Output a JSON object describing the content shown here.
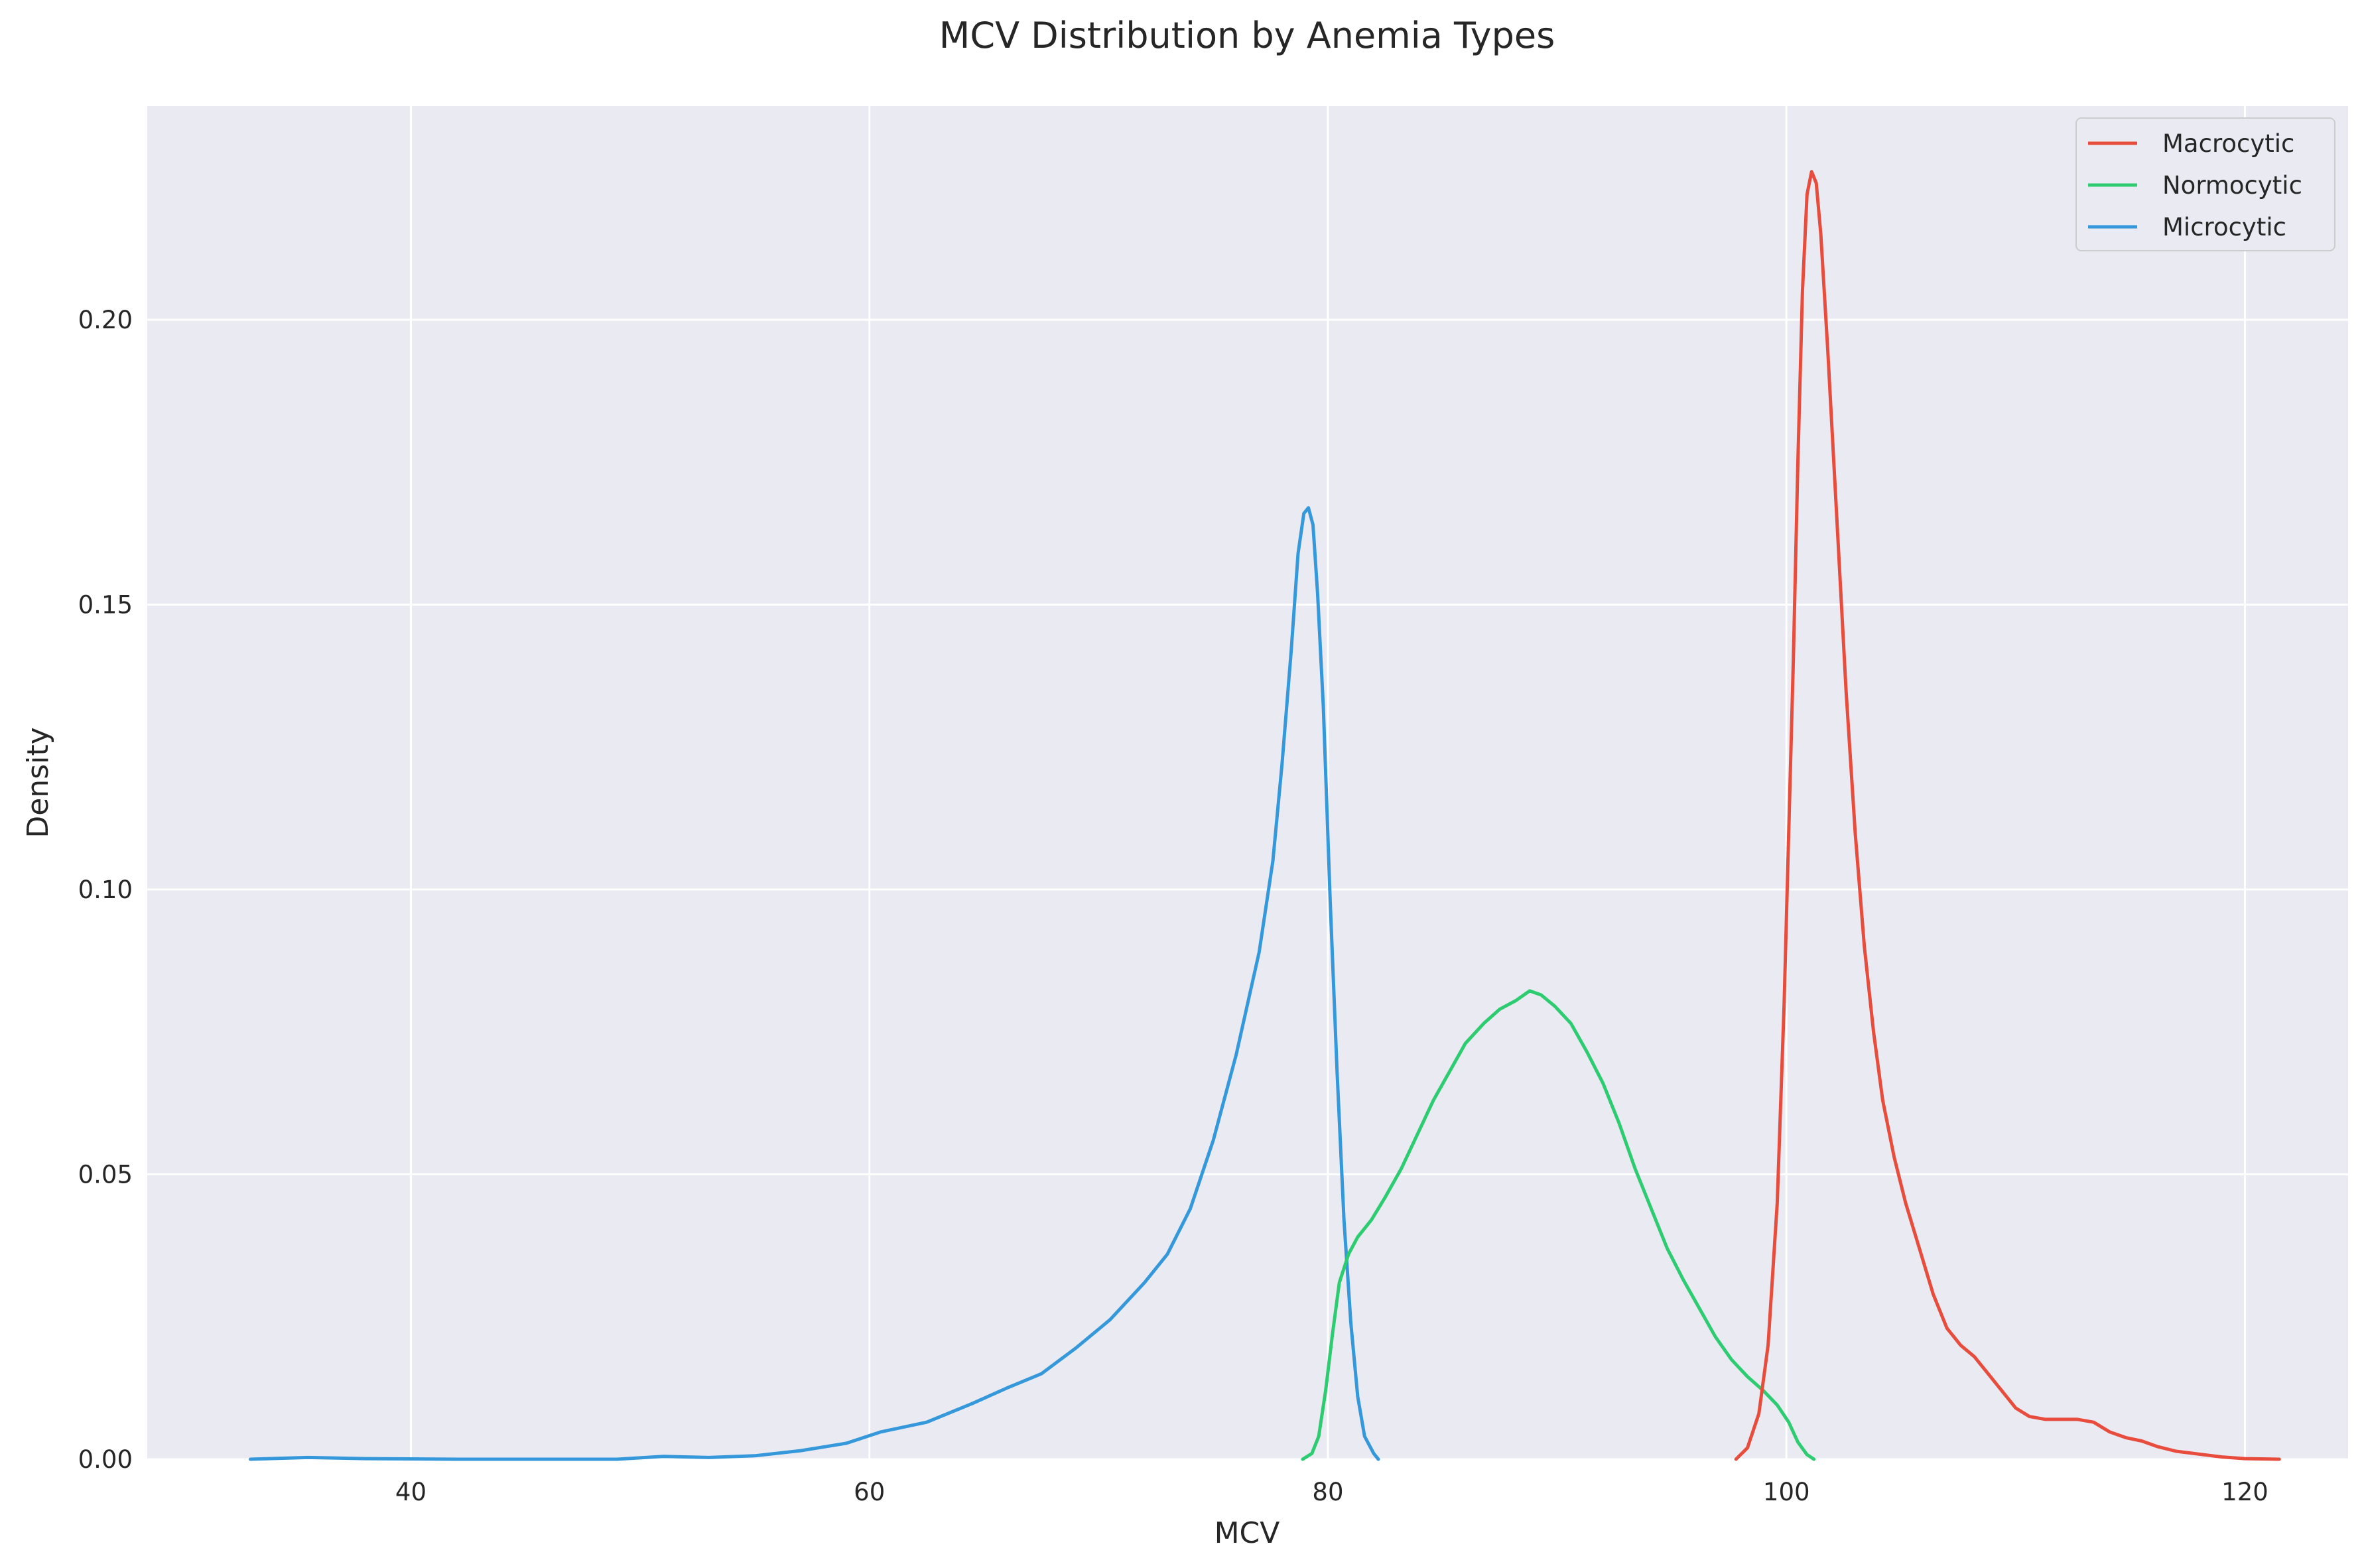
{
  "chart_data": {
    "type": "line",
    "title": "MCV Distribution by Anemia Types",
    "xlabel": "MCV",
    "ylabel": "Density",
    "xlim": [
      28.5,
      124.5
    ],
    "ylim": [
      0,
      0.2375
    ],
    "xticks": [
      40,
      60,
      80,
      100,
      120
    ],
    "yticks": [
      0.0,
      0.05,
      0.1,
      0.15,
      0.2
    ],
    "xtick_labels": [
      "40",
      "60",
      "80",
      "100",
      "120"
    ],
    "ytick_labels": [
      "0.00",
      "0.05",
      "0.10",
      "0.15",
      "0.20"
    ],
    "grid": true,
    "legend_position": "top-right",
    "background": "#eaeaf2",
    "series": [
      {
        "name": "Macrocytic",
        "color": "#e74c3c",
        "points": [
          [
            97.8,
            0.0
          ],
          [
            98.3,
            0.002
          ],
          [
            98.8,
            0.008
          ],
          [
            99.2,
            0.02
          ],
          [
            99.6,
            0.045
          ],
          [
            99.9,
            0.08
          ],
          [
            100.1,
            0.11
          ],
          [
            100.3,
            0.14
          ],
          [
            100.5,
            0.175
          ],
          [
            100.7,
            0.205
          ],
          [
            100.9,
            0.222
          ],
          [
            101.1,
            0.226
          ],
          [
            101.3,
            0.224
          ],
          [
            101.5,
            0.215
          ],
          [
            101.8,
            0.195
          ],
          [
            102.2,
            0.165
          ],
          [
            102.6,
            0.135
          ],
          [
            103.0,
            0.11
          ],
          [
            103.4,
            0.09
          ],
          [
            103.8,
            0.075
          ],
          [
            104.2,
            0.063
          ],
          [
            104.7,
            0.053
          ],
          [
            105.2,
            0.045
          ],
          [
            105.8,
            0.037
          ],
          [
            106.4,
            0.029
          ],
          [
            107.0,
            0.023
          ],
          [
            107.6,
            0.02
          ],
          [
            108.2,
            0.018
          ],
          [
            108.8,
            0.015
          ],
          [
            109.4,
            0.012
          ],
          [
            110.0,
            0.009
          ],
          [
            110.6,
            0.0075
          ],
          [
            111.3,
            0.007
          ],
          [
            112.0,
            0.007
          ],
          [
            112.7,
            0.007
          ],
          [
            113.4,
            0.0065
          ],
          [
            114.1,
            0.0048
          ],
          [
            114.8,
            0.0038
          ],
          [
            115.5,
            0.0032
          ],
          [
            116.2,
            0.0022
          ],
          [
            117.0,
            0.0014
          ],
          [
            118.0,
            0.0009
          ],
          [
            119.0,
            0.0004
          ],
          [
            120.0,
            0.0001
          ],
          [
            121.5,
            0.0
          ]
        ]
      },
      {
        "name": "Normocytic",
        "color": "#2ecc71",
        "points": [
          [
            78.9,
            0.0
          ],
          [
            79.3,
            0.001
          ],
          [
            79.6,
            0.004
          ],
          [
            79.9,
            0.012
          ],
          [
            80.2,
            0.022
          ],
          [
            80.5,
            0.031
          ],
          [
            80.9,
            0.036
          ],
          [
            81.3,
            0.039
          ],
          [
            81.9,
            0.042
          ],
          [
            82.5,
            0.046
          ],
          [
            83.2,
            0.051
          ],
          [
            83.9,
            0.057
          ],
          [
            84.6,
            0.063
          ],
          [
            85.3,
            0.068
          ],
          [
            86.0,
            0.073
          ],
          [
            86.8,
            0.0765
          ],
          [
            87.5,
            0.079
          ],
          [
            88.2,
            0.0805
          ],
          [
            88.8,
            0.0822
          ],
          [
            89.3,
            0.0815
          ],
          [
            89.9,
            0.0795
          ],
          [
            90.6,
            0.0765
          ],
          [
            91.3,
            0.0715
          ],
          [
            92.0,
            0.066
          ],
          [
            92.7,
            0.059
          ],
          [
            93.4,
            0.051
          ],
          [
            94.1,
            0.044
          ],
          [
            94.8,
            0.037
          ],
          [
            95.5,
            0.0315
          ],
          [
            96.2,
            0.0265
          ],
          [
            96.9,
            0.0215
          ],
          [
            97.6,
            0.0175
          ],
          [
            98.3,
            0.0145
          ],
          [
            99.0,
            0.012
          ],
          [
            99.6,
            0.0095
          ],
          [
            100.1,
            0.0065
          ],
          [
            100.5,
            0.003
          ],
          [
            100.9,
            0.0008
          ],
          [
            101.2,
            0.0
          ]
        ]
      },
      {
        "name": "Microcytic",
        "color": "#3498db",
        "points": [
          [
            33.0,
            0.0
          ],
          [
            35.5,
            0.0003
          ],
          [
            38.0,
            0.0001
          ],
          [
            42.0,
            0.0
          ],
          [
            46.0,
            0.0
          ],
          [
            49.0,
            0.0
          ],
          [
            51.0,
            0.0005
          ],
          [
            53.0,
            0.0003
          ],
          [
            55.0,
            0.0006
          ],
          [
            57.0,
            0.0015
          ],
          [
            59.0,
            0.0028
          ],
          [
            60.5,
            0.0048
          ],
          [
            62.5,
            0.0065
          ],
          [
            64.5,
            0.0098
          ],
          [
            66.0,
            0.0125
          ],
          [
            67.5,
            0.015
          ],
          [
            69.0,
            0.0195
          ],
          [
            70.5,
            0.0245
          ],
          [
            72.0,
            0.031
          ],
          [
            73.0,
            0.036
          ],
          [
            74.0,
            0.044
          ],
          [
            75.0,
            0.056
          ],
          [
            76.0,
            0.071
          ],
          [
            77.0,
            0.089
          ],
          [
            77.6,
            0.105
          ],
          [
            78.0,
            0.122
          ],
          [
            78.4,
            0.142
          ],
          [
            78.7,
            0.159
          ],
          [
            78.95,
            0.166
          ],
          [
            79.15,
            0.167
          ],
          [
            79.35,
            0.164
          ],
          [
            79.55,
            0.152
          ],
          [
            79.8,
            0.132
          ],
          [
            80.1,
            0.098
          ],
          [
            80.4,
            0.068
          ],
          [
            80.7,
            0.042
          ],
          [
            81.0,
            0.024
          ],
          [
            81.3,
            0.011
          ],
          [
            81.6,
            0.004
          ],
          [
            82.0,
            0.001
          ],
          [
            82.2,
            0.0
          ]
        ]
      }
    ]
  }
}
